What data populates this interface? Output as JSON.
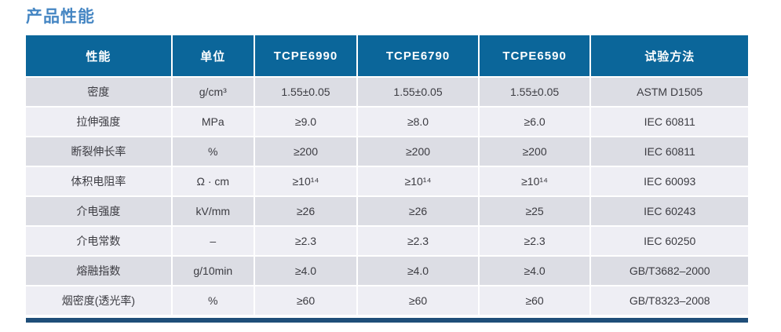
{
  "page_title": "产品性能",
  "colors": {
    "title_blue": "#4586C3",
    "header_bg": "#0B669A",
    "row_odd_bg": "#DCDDE4",
    "row_even_bg": "#EEEEF4",
    "bottom_bar": "#1F4E79",
    "body_text": "#3C3C42",
    "header_text": "#FFFFFF"
  },
  "table": {
    "headers": [
      "性能",
      "单位",
      "TCPE6990",
      "TCPE6790",
      "TCPE6590",
      "试验方法"
    ],
    "rows": [
      [
        "密度",
        "g/cm³",
        "1.55±0.05",
        "1.55±0.05",
        "1.55±0.05",
        "ASTM D1505"
      ],
      [
        "拉伸强度",
        "MPa",
        "≥9.0",
        "≥8.0",
        "≥6.0",
        "IEC 60811"
      ],
      [
        "断裂伸长率",
        "%",
        "≥200",
        "≥200",
        "≥200",
        "IEC 60811"
      ],
      [
        "体积电阻率",
        "Ω · cm",
        "≥10¹⁴",
        "≥10¹⁴",
        "≥10¹⁴",
        "IEC 60093"
      ],
      [
        "介电强度",
        "kV/mm",
        "≥26",
        "≥26",
        "≥25",
        "IEC 60243"
      ],
      [
        "介电常数",
        "–",
        "≥2.3",
        "≥2.3",
        "≥2.3",
        "IEC 60250"
      ],
      [
        "熔融指数",
        "g/10min",
        "≥4.0",
        "≥4.0",
        "≥4.0",
        "GB/T3682–2000"
      ],
      [
        "烟密度(透光率)",
        "%",
        "≥60",
        "≥60",
        "≥60",
        "GB/T8323–2008"
      ]
    ]
  }
}
